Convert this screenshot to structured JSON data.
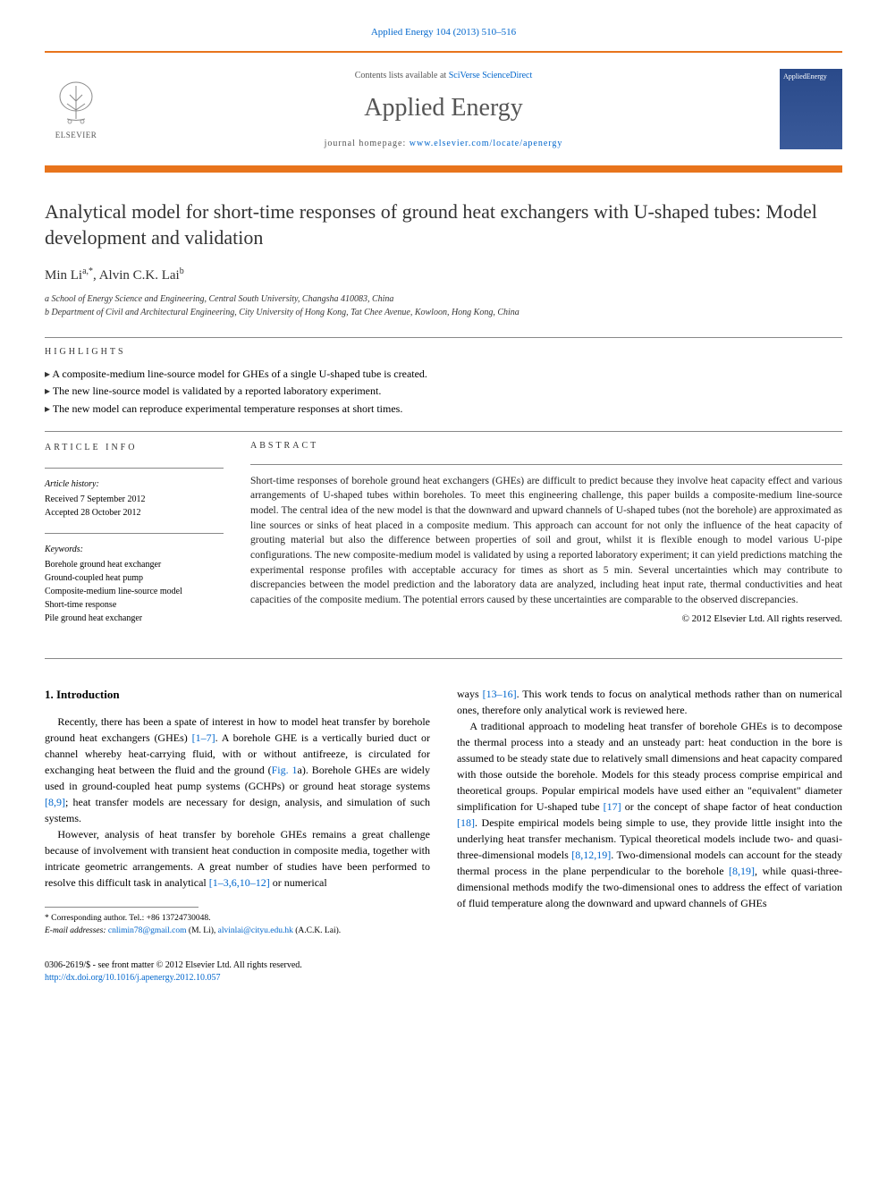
{
  "header": {
    "citation": "Applied Energy 104 (2013) 510–516",
    "contents_text": "Contents lists available at ",
    "contents_link": "SciVerse ScienceDirect",
    "journal_name": "Applied Energy",
    "homepage_text": "journal homepage: ",
    "homepage_link": "www.elsevier.com/locate/apenergy",
    "publisher": "ELSEVIER",
    "cover_title": "AppliedEnergy",
    "colors": {
      "orange_bar": "#e8741c",
      "link": "#0066cc",
      "cover_bg": "#2a4a8a"
    }
  },
  "article": {
    "title": "Analytical model for short-time responses of ground heat exchangers with U-shaped tubes: Model development and validation",
    "authors_html": "Min Li",
    "author1_sup": "a,*",
    "author2": ", Alvin C.K. Lai",
    "author2_sup": "b",
    "affiliations": [
      "a School of Energy Science and Engineering, Central South University, Changsha 410083, China",
      "b Department of Civil and Architectural Engineering, City University of Hong Kong, Tat Chee Avenue, Kowloon, Hong Kong, China"
    ]
  },
  "highlights": {
    "label": "HIGHLIGHTS",
    "items": [
      "A composite-medium line-source model for GHEs of a single U-shaped tube is created.",
      "The new line-source model is validated by a reported laboratory experiment.",
      "The new model can reproduce experimental temperature responses at short times."
    ]
  },
  "article_info": {
    "label": "ARTICLE INFO",
    "history_heading": "Article history:",
    "received": "Received 7 September 2012",
    "accepted": "Accepted 28 October 2012",
    "keywords_heading": "Keywords:",
    "keywords": [
      "Borehole ground heat exchanger",
      "Ground-coupled heat pump",
      "Composite-medium line-source model",
      "Short-time response",
      "Pile ground heat exchanger"
    ]
  },
  "abstract": {
    "label": "ABSTRACT",
    "text": "Short-time responses of borehole ground heat exchangers (GHEs) are difficult to predict because they involve heat capacity effect and various arrangements of U-shaped tubes within boreholes. To meet this engineering challenge, this paper builds a composite-medium line-source model. The central idea of the new model is that the downward and upward channels of U-shaped tubes (not the borehole) are approximated as line sources or sinks of heat placed in a composite medium. This approach can account for not only the influence of the heat capacity of grouting material but also the difference between properties of soil and grout, whilst it is flexible enough to model various U-pipe configurations. The new composite-medium model is validated by using a reported laboratory experiment; it can yield predictions matching the experimental response profiles with acceptable accuracy for times as short as 5 min. Several uncertainties which may contribute to discrepancies between the model prediction and the laboratory data are analyzed, including heat input rate, thermal conductivities and heat capacities of the composite medium. The potential errors caused by these uncertainties are comparable to the observed discrepancies.",
    "copyright": "© 2012 Elsevier Ltd. All rights reserved."
  },
  "body": {
    "section_heading": "1. Introduction",
    "col1_p1": "Recently, there has been a spate of interest in how to model heat transfer by borehole ground heat exchangers (GHEs) [1–7]. A borehole GHE is a vertically buried duct or channel whereby heat-carrying fluid, with or without antifreeze, is circulated for exchanging heat between the fluid and the ground (Fig. 1a). Borehole GHEs are widely used in ground-coupled heat pump systems (GCHPs) or ground heat storage systems [8,9]; heat transfer models are necessary for design, analysis, and simulation of such systems.",
    "col1_p2": "However, analysis of heat transfer by borehole GHEs remains a great challenge because of involvement with transient heat conduction in composite media, together with intricate geometric arrangements. A great number of studies have been performed to resolve this difficult task in analytical [1–3,6,10–12] or numerical",
    "col2_p1": "ways [13–16]. This work tends to focus on analytical methods rather than on numerical ones, therefore only analytical work is reviewed here.",
    "col2_p2": "A traditional approach to modeling heat transfer of borehole GHEs is to decompose the thermal process into a steady and an unsteady part: heat conduction in the bore is assumed to be steady state due to relatively small dimensions and heat capacity compared with those outside the borehole. Models for this steady process comprise empirical and theoretical groups. Popular empirical models have used either an \"equivalent\" diameter simplification for U-shaped tube [17] or the concept of shape factor of heat conduction [18]. Despite empirical models being simple to use, they provide little insight into the underlying heat transfer mechanism. Typical theoretical models include two- and quasi-three-dimensional models [8,12,19]. Two-dimensional models can account for the steady thermal process in the plane perpendicular to the borehole [8,19], while quasi-three-dimensional methods modify the two-dimensional ones to address the effect of variation of fluid temperature along the downward and upward channels of GHEs"
  },
  "footnotes": {
    "corresponding": "* Corresponding author. Tel.: +86 13724730048.",
    "email_label": "E-mail addresses: ",
    "email1": "cnlimin78@gmail.com",
    "email1_name": " (M. Li), ",
    "email2": "alvinlai@cityu.edu.hk",
    "email2_name": " (A.C.K. Lai)."
  },
  "footer": {
    "issn": "0306-2619/$ - see front matter © 2012 Elsevier Ltd. All rights reserved.",
    "doi": "http://dx.doi.org/10.1016/j.apenergy.2012.10.057"
  }
}
